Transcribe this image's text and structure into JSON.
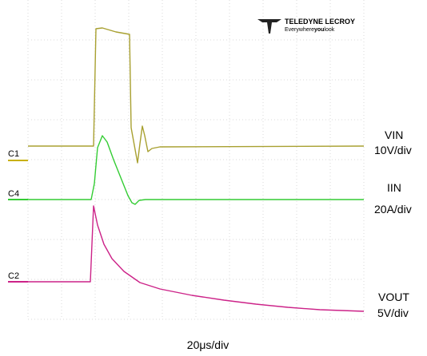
{
  "logo": {
    "brand": "TELEDYNE LECROY",
    "tagline_start": "Everywhere",
    "tagline_bold": "you",
    "tagline_end": "look"
  },
  "channels": [
    {
      "marker": "C1",
      "label": "VIN",
      "scale": "10V/div"
    },
    {
      "marker": "C4",
      "label": "IIN",
      "scale": "20A/div"
    },
    {
      "marker": "C2",
      "label": "VOUT",
      "scale": "5V/div"
    }
  ],
  "timebase": "20μs/div"
}
